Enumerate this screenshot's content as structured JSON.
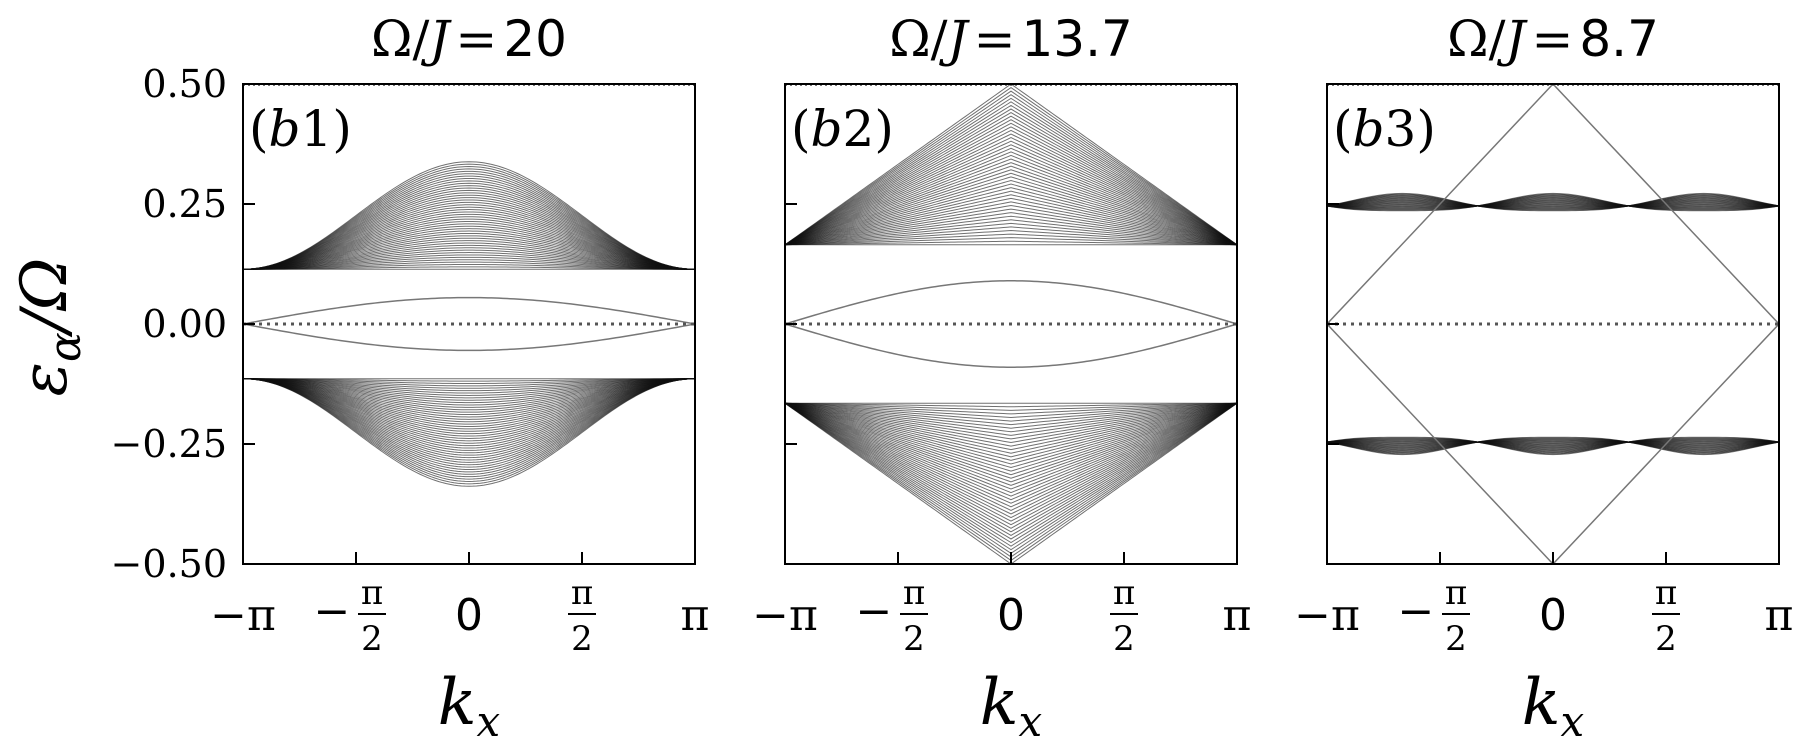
{
  "chart_data": {
    "type": "line",
    "ylabel": "ε_α/Ω",
    "ylim": [
      -0.5,
      0.5
    ],
    "yticks": [
      0.5,
      0.25,
      0.0,
      -0.25,
      -0.5
    ],
    "ytick_labels": [
      "0.50",
      "0.25",
      "0.00",
      "−0.25",
      "−0.50"
    ],
    "xlim": [
      -3.14159,
      3.14159
    ],
    "xticks": [
      -3.14159,
      -1.5708,
      0,
      1.5708,
      3.14159
    ],
    "xtick_labels": [
      "−π",
      "−π/2",
      "0",
      "π/2",
      "π"
    ],
    "grid": false,
    "panels": [
      {
        "title_symbol": "Ω/J",
        "title_eq": "=",
        "title_value": "20",
        "label": "(b1)",
        "xlabel": "k_x",
        "bands": {
          "n_lines": 46,
          "edge_k_pi": 0.114,
          "center_inner": 0.114,
          "center_outer": 0.338,
          "peak_pos": 0.34,
          "shape": "smooth"
        },
        "edge_states": {
          "value_at_zero_k": 0.0,
          "value_at_pi": 0.0,
          "max": 0.055
        }
      },
      {
        "title_symbol": "Ω/J",
        "title_eq": "=",
        "title_value": "13.7",
        "label": "(b2)",
        "xlabel": "k_x",
        "bands": {
          "n_lines": 46,
          "edge_k_pi": 0.165,
          "center_inner": 0.165,
          "center_outer": 0.5,
          "peak_pos": 0.43,
          "shape": "sharp"
        },
        "edge_states": {
          "value_at_zero_k": 0.0,
          "value_at_pi": 0.0,
          "max": 0.09
        }
      },
      {
        "title_symbol": "Ω/J",
        "title_eq": "=",
        "title_value": "8.7",
        "label": "(b3)",
        "xlabel": "k_x",
        "bands": {
          "n_lines": 26,
          "center": 0.25,
          "width": 0.018,
          "shape": "flat"
        },
        "edge_states": {
          "value_at_zero_k": 0.5,
          "value_at_pi": 0.0,
          "max": 0.5
        }
      }
    ]
  }
}
